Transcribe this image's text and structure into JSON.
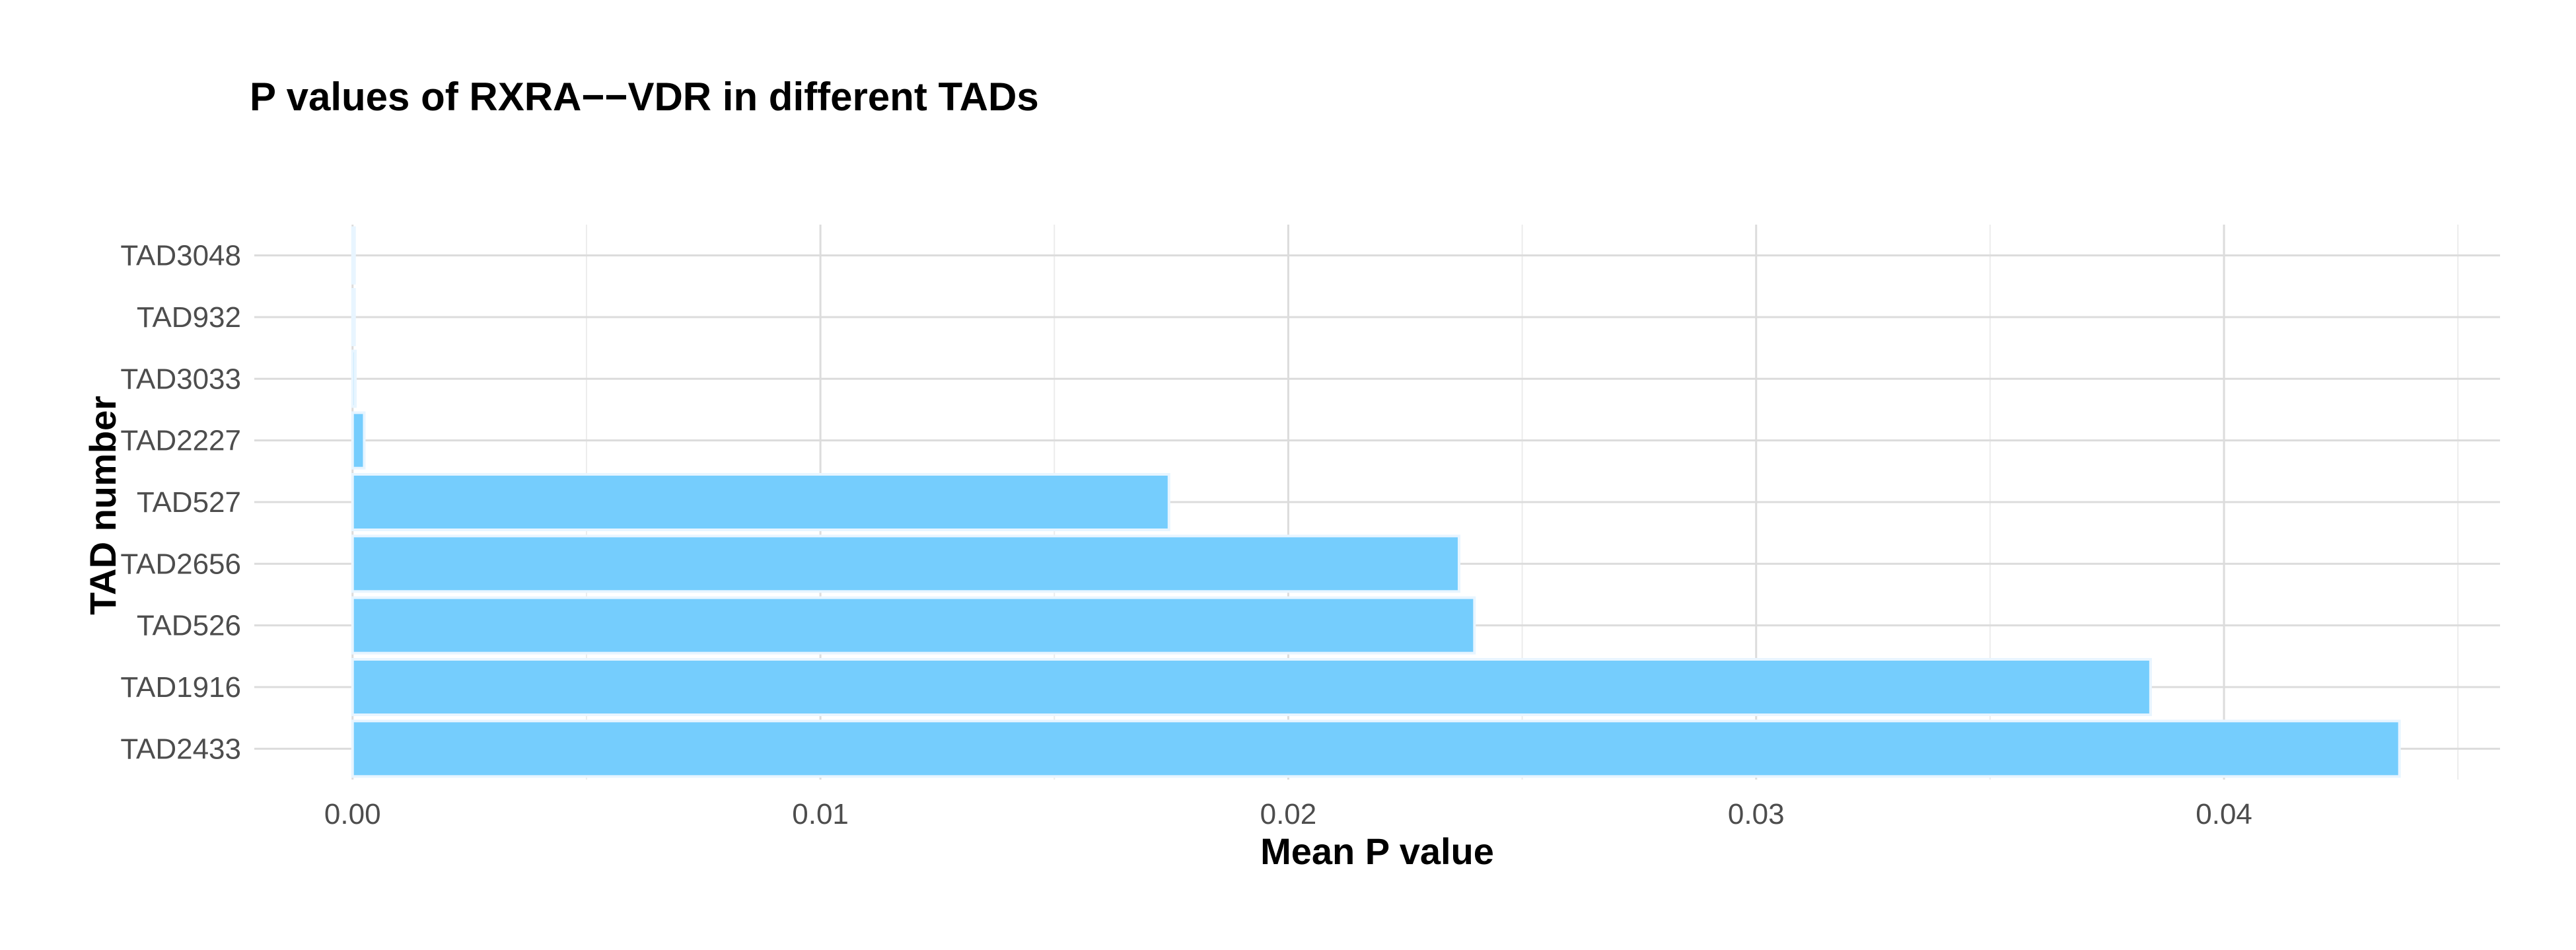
{
  "chart_data": {
    "type": "bar",
    "orientation": "horizontal",
    "title": "P values of RXRA−−VDR in different TADs",
    "xlabel": "Mean P value",
    "ylabel": "TAD number",
    "categories": [
      "TAD3048",
      "TAD932",
      "TAD3033",
      "TAD2227",
      "TAD527",
      "TAD2656",
      "TAD526",
      "TAD1916",
      "TAD2433"
    ],
    "values": [
      0.0,
      4e-05,
      6e-05,
      0.00025,
      0.01745,
      0.02365,
      0.02398,
      0.03843,
      0.04375
    ],
    "xlim": [
      -0.0021,
      0.0459
    ],
    "xticks": [
      0.0,
      0.01,
      0.02,
      0.03,
      0.04
    ],
    "xtick_labels": [
      "0.00",
      "0.01",
      "0.02",
      "0.03",
      "0.04"
    ],
    "grid": true,
    "legend": "none",
    "colors": {
      "bar_fill": "#75cdfd",
      "bar_outline": "#e8f5ff",
      "grid_major": "#dcdcdc",
      "grid_minor": "#ececec",
      "tick_text": "#4d4d4d",
      "title_text": "#000000"
    }
  }
}
